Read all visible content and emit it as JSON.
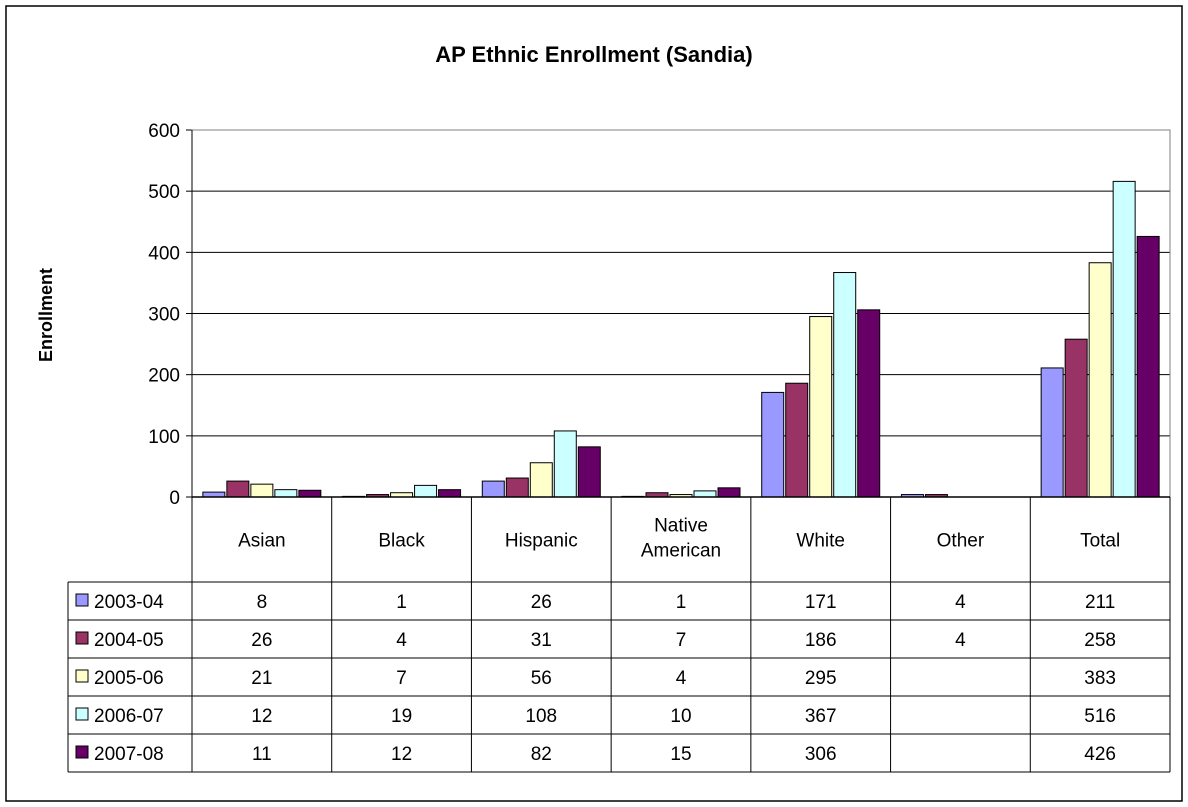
{
  "chart_data": {
    "type": "bar",
    "title": "AP Ethnic Enrollment (Sandia)",
    "xlabel": "",
    "ylabel": "Enrollment",
    "ylim": [
      0,
      600
    ],
    "yticks": [
      0,
      100,
      200,
      300,
      400,
      500,
      600
    ],
    "grid": true,
    "legend": "data-table-left",
    "categories": [
      "Asian",
      "Black",
      "Hispanic",
      "Native American",
      "White",
      "Other",
      "Total"
    ],
    "series": [
      {
        "name": "2003-04",
        "color": "#9999FF",
        "values": [
          8,
          1,
          26,
          1,
          171,
          4,
          211
        ]
      },
      {
        "name": "2004-05",
        "color": "#993366",
        "values": [
          26,
          4,
          31,
          7,
          186,
          4,
          258
        ]
      },
      {
        "name": "2005-06",
        "color": "#FFFFCC",
        "values": [
          21,
          7,
          56,
          4,
          295,
          null,
          383
        ]
      },
      {
        "name": "2006-07",
        "color": "#CCFFFF",
        "values": [
          12,
          19,
          108,
          10,
          367,
          null,
          516
        ]
      },
      {
        "name": "2007-08",
        "color": "#660066",
        "values": [
          11,
          12,
          82,
          15,
          306,
          null,
          426
        ]
      }
    ]
  }
}
